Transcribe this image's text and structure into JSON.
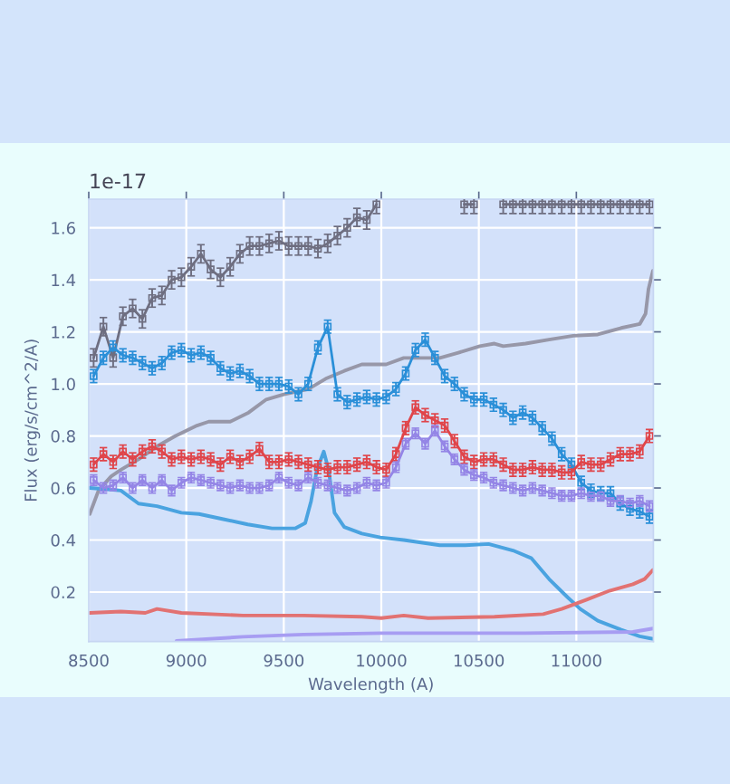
{
  "chart_data": {
    "type": "line",
    "xlabel": "Wavelength (A)",
    "ylabel": "Flux (erg/s/cm^2/A)",
    "annotations": [
      "1e-17"
    ],
    "x": [
      8525,
      8575,
      8625,
      8675,
      8725,
      8775,
      8825,
      8875,
      8925,
      8975,
      9025,
      9075,
      9125,
      9175,
      9225,
      9275,
      9325,
      9375,
      9425,
      9475,
      9525,
      9575,
      9625,
      9675,
      9725,
      9775,
      9825,
      9875,
      9925,
      9975,
      10025,
      10075,
      10125,
      10175,
      10225,
      10275,
      10325,
      10375,
      10425,
      10475,
      10525,
      10575,
      10625,
      10675,
      10725,
      10775,
      10825,
      10875,
      10925,
      10975,
      11025,
      11075,
      11125,
      11175,
      11225,
      11275,
      11325,
      11375
    ],
    "xlim": [
      8500,
      11395
    ],
    "xticks": [
      8500,
      9000,
      9500,
      10000,
      10500,
      11000
    ],
    "ylim": [
      0.01,
      1.71
    ],
    "yticks": [
      0.2,
      0.4,
      0.6,
      0.8,
      {
        "value": 1.0,
        "label": "1.0"
      },
      1.2,
      1.4,
      1.6
    ],
    "grid": true,
    "marker": "square",
    "line_style": "solid",
    "series": [
      {
        "color": "#6e6e80",
        "values": [
          1.1,
          1.22,
          1.1,
          1.26,
          1.29,
          1.25,
          1.33,
          1.34,
          1.4,
          1.41,
          1.45,
          1.5,
          1.44,
          1.41,
          1.45,
          1.5,
          1.53,
          1.53,
          1.54,
          1.55,
          1.53,
          1.53,
          1.53,
          1.52,
          1.54,
          1.57,
          1.6,
          1.64,
          1.63,
          1.69,
          null,
          null,
          null,
          null,
          null,
          null,
          null,
          null,
          1.69,
          1.69,
          null,
          null,
          1.69,
          1.69,
          1.69,
          1.69,
          1.69,
          1.69,
          1.69,
          1.69,
          1.69,
          1.69,
          1.69,
          1.69,
          1.69,
          1.69,
          1.69,
          1.69
        ],
        "errors": [
          0.035,
          0.035,
          0.035,
          0.035,
          0.035,
          0.035,
          0.035,
          0.035,
          0.035,
          0.035,
          0.035,
          0.035,
          0.035,
          0.035,
          0.035,
          0.035,
          0.035,
          0.035,
          0.035,
          0.035,
          0.035,
          0.035,
          0.035,
          0.035,
          0.035,
          0.035,
          0.035,
          0.035,
          0.035,
          0.035,
          null,
          null,
          null,
          null,
          null,
          null,
          null,
          null,
          0.035,
          0.035,
          null,
          null,
          0.035,
          0.035,
          0.035,
          0.035,
          0.035,
          0.035,
          0.035,
          0.035,
          0.035,
          0.035,
          0.035,
          0.035,
          0.035,
          0.035,
          0.035,
          0.035
        ]
      },
      {
        "color": "#2a8fd8",
        "values": [
          1.03,
          1.1,
          1.14,
          1.11,
          1.1,
          1.08,
          1.06,
          1.08,
          1.12,
          1.13,
          1.11,
          1.12,
          1.1,
          1.06,
          1.04,
          1.05,
          1.03,
          1.0,
          1.0,
          1.0,
          0.99,
          0.96,
          1.0,
          1.14,
          1.22,
          0.96,
          0.93,
          0.94,
          0.95,
          0.94,
          0.95,
          0.98,
          1.04,
          1.13,
          1.17,
          1.1,
          1.03,
          1.0,
          0.96,
          0.94,
          0.94,
          0.92,
          0.9,
          0.87,
          0.89,
          0.87,
          0.83,
          0.79,
          0.73,
          0.69,
          0.62,
          0.59,
          0.58,
          0.58,
          0.54,
          0.52,
          0.51,
          0.49
        ],
        "errors": [
          0.025,
          0.025,
          0.025,
          0.025,
          0.025,
          0.025,
          0.025,
          0.025,
          0.025,
          0.025,
          0.025,
          0.025,
          0.025,
          0.025,
          0.025,
          0.025,
          0.025,
          0.025,
          0.025,
          0.025,
          0.025,
          0.025,
          0.025,
          0.025,
          0.025,
          0.025,
          0.025,
          0.025,
          0.025,
          0.025,
          0.025,
          0.025,
          0.025,
          0.025,
          0.025,
          0.025,
          0.025,
          0.025,
          0.025,
          0.025,
          0.025,
          0.025,
          0.025,
          0.025,
          0.025,
          0.025,
          0.025,
          0.025,
          0.025,
          0.025,
          0.025,
          0.025,
          0.025,
          0.025,
          0.025,
          0.025,
          0.025,
          0.025
        ]
      },
      {
        "color": "#e0454a",
        "values": [
          0.69,
          0.73,
          0.7,
          0.74,
          0.71,
          0.74,
          0.76,
          0.74,
          0.71,
          0.72,
          0.71,
          0.72,
          0.71,
          0.69,
          0.72,
          0.7,
          0.72,
          0.75,
          0.7,
          0.7,
          0.71,
          0.7,
          0.69,
          0.68,
          0.67,
          0.68,
          0.68,
          0.69,
          0.7,
          0.68,
          0.67,
          0.73,
          0.83,
          0.91,
          0.88,
          0.86,
          0.84,
          0.78,
          0.72,
          0.7,
          0.71,
          0.71,
          0.69,
          0.67,
          0.67,
          0.68,
          0.67,
          0.67,
          0.66,
          0.66,
          0.7,
          0.69,
          0.69,
          0.71,
          0.73,
          0.73,
          0.74,
          0.8
        ],
        "errors": [
          0.025,
          0.025,
          0.025,
          0.025,
          0.025,
          0.025,
          0.025,
          0.025,
          0.025,
          0.025,
          0.025,
          0.025,
          0.025,
          0.025,
          0.025,
          0.025,
          0.025,
          0.025,
          0.025,
          0.025,
          0.025,
          0.025,
          0.025,
          0.025,
          0.025,
          0.025,
          0.025,
          0.025,
          0.025,
          0.025,
          0.025,
          0.025,
          0.025,
          0.025,
          0.025,
          0.025,
          0.025,
          0.025,
          0.025,
          0.025,
          0.025,
          0.025,
          0.025,
          0.025,
          0.025,
          0.025,
          0.025,
          0.025,
          0.025,
          0.025,
          0.025,
          0.025,
          0.025,
          0.025,
          0.025,
          0.025,
          0.025,
          0.025
        ]
      },
      {
        "color": "#9485e6",
        "values": [
          0.63,
          0.6,
          0.61,
          0.64,
          0.6,
          0.63,
          0.6,
          0.63,
          0.59,
          0.62,
          0.64,
          0.63,
          0.62,
          0.61,
          0.6,
          0.61,
          0.6,
          0.6,
          0.61,
          0.64,
          0.62,
          0.61,
          0.64,
          0.62,
          0.61,
          0.6,
          0.59,
          0.6,
          0.62,
          0.61,
          0.62,
          0.68,
          0.77,
          0.81,
          0.77,
          0.82,
          0.76,
          0.71,
          0.67,
          0.65,
          0.64,
          0.62,
          0.61,
          0.6,
          0.59,
          0.6,
          0.59,
          0.58,
          0.57,
          0.57,
          0.58,
          0.57,
          0.57,
          0.55,
          0.55,
          0.54,
          0.55,
          0.53
        ],
        "errors": [
          0.02,
          0.02,
          0.02,
          0.02,
          0.02,
          0.02,
          0.02,
          0.02,
          0.02,
          0.02,
          0.02,
          0.02,
          0.02,
          0.02,
          0.02,
          0.02,
          0.02,
          0.02,
          0.02,
          0.02,
          0.02,
          0.02,
          0.02,
          0.02,
          0.02,
          0.02,
          0.02,
          0.02,
          0.02,
          0.02,
          0.02,
          0.02,
          0.02,
          0.02,
          0.02,
          0.02,
          0.02,
          0.02,
          0.02,
          0.02,
          0.02,
          0.02,
          0.02,
          0.02,
          0.02,
          0.02,
          0.02,
          0.02,
          0.02,
          0.02,
          0.02,
          0.02,
          0.02,
          0.02,
          0.02,
          0.02,
          0.02,
          0.02
        ]
      },
      {
        "color": "#9797a8",
        "marker": "none",
        "x": [
          8505,
          8550,
          8615,
          8665,
          8755,
          8850,
          8945,
          9055,
          9115,
          9225,
          9320,
          9410,
          9500,
          9625,
          9715,
          9810,
          9900,
          10025,
          10115,
          10205,
          10300,
          10395,
          10505,
          10580,
          10625,
          10740,
          10860,
          10985,
          11110,
          11230,
          11325,
          11355,
          11370,
          11393
        ],
        "values": [
          0.5,
          0.59,
          0.645,
          0.67,
          0.71,
          0.76,
          0.8,
          0.84,
          0.855,
          0.855,
          0.89,
          0.94,
          0.96,
          0.98,
          1.02,
          1.05,
          1.075,
          1.075,
          1.1,
          1.1,
          1.1,
          1.12,
          1.145,
          1.155,
          1.145,
          1.155,
          1.17,
          1.185,
          1.19,
          1.215,
          1.23,
          1.27,
          1.365,
          1.435
        ]
      },
      {
        "color": "#4aa3e0",
        "marker": "none",
        "x": [
          8505,
          8600,
          8665,
          8755,
          8850,
          8975,
          9065,
          9190,
          9315,
          9440,
          9560,
          9610,
          9640,
          9670,
          9705,
          9730,
          9760,
          9810,
          9900,
          9995,
          10115,
          10300,
          10430,
          10550,
          10675,
          10770,
          10860,
          10955,
          11020,
          11110,
          11230,
          11325,
          11393
        ],
        "values": [
          0.6,
          0.595,
          0.59,
          0.54,
          0.53,
          0.505,
          0.5,
          0.48,
          0.46,
          0.445,
          0.445,
          0.465,
          0.55,
          0.67,
          0.74,
          0.67,
          0.505,
          0.45,
          0.425,
          0.41,
          0.4,
          0.38,
          0.38,
          0.385,
          0.36,
          0.33,
          0.25,
          0.18,
          0.135,
          0.09,
          0.055,
          0.03,
          0.02
        ]
      },
      {
        "color": "#e27272",
        "marker": "none",
        "x": [
          8505,
          8665,
          8790,
          8850,
          8975,
          9290,
          9600,
          9900,
          10000,
          10115,
          10240,
          10580,
          10830,
          10925,
          11050,
          11170,
          11290,
          11350,
          11393
        ],
        "values": [
          0.12,
          0.125,
          0.12,
          0.135,
          0.12,
          0.11,
          0.11,
          0.105,
          0.1,
          0.11,
          0.1,
          0.105,
          0.115,
          0.135,
          0.17,
          0.205,
          0.23,
          0.25,
          0.285
        ]
      },
      {
        "color": "#a79df2",
        "marker": "none",
        "x": [
          8950,
          9290,
          9600,
          10000,
          10740,
          11290,
          11393
        ],
        "values": [
          0.012,
          0.028,
          0.037,
          0.042,
          0.042,
          0.047,
          0.06
        ]
      }
    ]
  }
}
